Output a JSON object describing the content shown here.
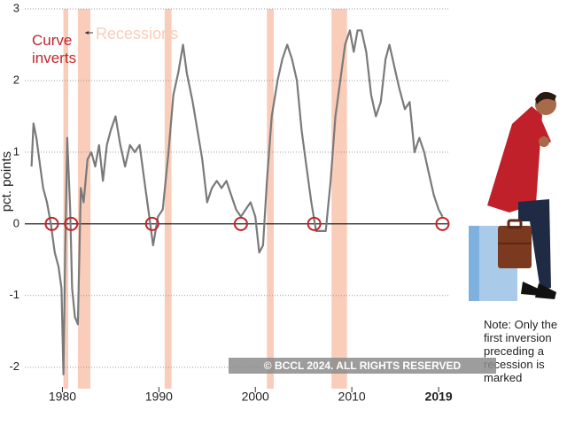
{
  "chart_data": {
    "type": "line",
    "y_label": "pct. points",
    "annotation": "Curve inverts",
    "note": "Note: Only the first inversion preceding a recession is marked",
    "copyright": "© BCCL 2024. ALL RIGHTS RESERVED",
    "xlim": [
      1976.1,
      2020
    ],
    "ylim": [
      -2.3,
      3
    ],
    "xticks": [
      1980,
      1990,
      2000,
      2010,
      2019
    ],
    "yticks": [
      3,
      2,
      1,
      0,
      -1,
      -2
    ],
    "grid": true,
    "recessions": {
      "label": "Recessions",
      "color": "#f9cdb9",
      "periods": [
        [
          1980.1,
          1980.6
        ],
        [
          1981.6,
          1982.9
        ],
        [
          1990.6,
          1991.3
        ],
        [
          2001.2,
          2001.9
        ],
        [
          2007.9,
          2009.5
        ]
      ]
    },
    "inversions": {
      "color": "#c0262c",
      "x": [
        1978.9,
        1980.9,
        1989.3,
        1998.5,
        2006.1,
        2019.4
      ]
    },
    "series": [
      {
        "color": "#7a7a7a",
        "x": [
          1976.8,
          1977.0,
          1977.3,
          1977.6,
          1978.0,
          1978.4,
          1978.8,
          1979.2,
          1979.6,
          1979.9,
          1980.1,
          1980.3,
          1980.5,
          1980.8,
          1981.0,
          1981.3,
          1981.6,
          1981.9,
          1982.2,
          1982.6,
          1983.0,
          1983.4,
          1983.8,
          1984.2,
          1984.6,
          1985.0,
          1985.5,
          1986.0,
          1986.5,
          1987.0,
          1987.5,
          1988.0,
          1988.5,
          1989.0,
          1989.4,
          1989.9,
          1990.4,
          1991.0,
          1991.5,
          1992.0,
          1992.5,
          1992.9,
          1993.5,
          1994.0,
          1994.5,
          1995.0,
          1995.5,
          1996.0,
          1996.5,
          1997.0,
          1997.5,
          1998.0,
          1998.5,
          1999.0,
          1999.5,
          2000.0,
          2000.4,
          2000.8,
          2001.2,
          2001.7,
          2002.3,
          2002.8,
          2003.3,
          2003.8,
          2004.3,
          2004.8,
          2005.3,
          2005.8,
          2006.3,
          2006.8,
          2007.3,
          2007.8,
          2008.3,
          2008.8,
          2009.3,
          2009.8,
          2010.2,
          2010.6,
          2011.0,
          2011.5,
          2012.0,
          2012.5,
          2013.0,
          2013.5,
          2013.9,
          2014.4,
          2014.9,
          2015.5,
          2016.0,
          2016.5,
          2017.0,
          2017.5,
          2018.0,
          2018.5,
          2019.0,
          2019.4
        ],
        "values": [
          0.8,
          1.4,
          1.2,
          0.9,
          0.5,
          0.3,
          0.0,
          -0.4,
          -0.6,
          -0.9,
          -2.1,
          -0.3,
          1.2,
          0.2,
          -0.9,
          -1.3,
          -1.4,
          0.5,
          0.3,
          0.9,
          1.0,
          0.8,
          1.1,
          0.6,
          1.1,
          1.3,
          1.5,
          1.1,
          0.8,
          1.1,
          1.0,
          1.1,
          0.6,
          0.1,
          -0.3,
          0.1,
          0.2,
          1.0,
          1.8,
          2.1,
          2.5,
          2.1,
          1.7,
          1.3,
          0.9,
          0.3,
          0.5,
          0.6,
          0.5,
          0.6,
          0.4,
          0.2,
          0.1,
          0.2,
          0.3,
          0.1,
          -0.4,
          -0.3,
          0.6,
          1.5,
          2.0,
          2.3,
          2.5,
          2.3,
          2.0,
          1.3,
          0.8,
          0.3,
          -0.1,
          -0.1,
          -0.1,
          0.6,
          1.5,
          2.0,
          2.5,
          2.7,
          2.4,
          2.7,
          2.7,
          2.4,
          1.8,
          1.5,
          1.7,
          2.3,
          2.5,
          2.2,
          1.9,
          1.6,
          1.7,
          1.0,
          1.2,
          1.0,
          0.7,
          0.4,
          0.2,
          0.1
        ]
      }
    ]
  }
}
